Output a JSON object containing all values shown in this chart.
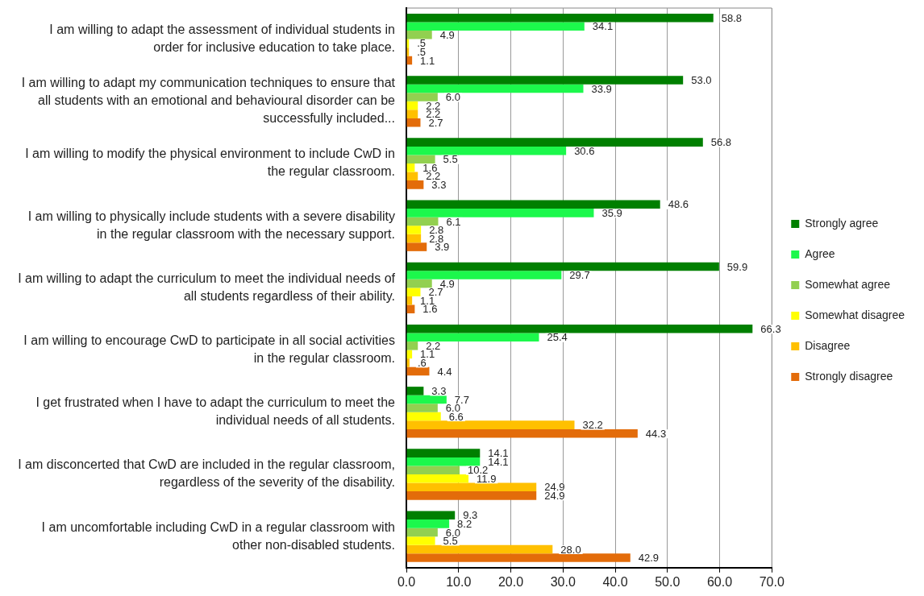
{
  "chart_data": {
    "type": "bar",
    "orientation": "horizontal",
    "categories": [
      "I am willing to adapt the assessment of individual students in order for inclusive education to take place.",
      "I am willing to adapt my communication techniques to ensure that all students with an emotional and behavioural disorder can be successfully included...",
      "I am willing to modify the physical environment to include CwD in the regular classroom.",
      "I am willing to physically include students with a severe disability in the regular classroom with the necessary support.",
      "I am willing to adapt the curriculum to meet the individual needs of all students regardless of their ability.",
      "I am willing to encourage CwD to participate in all social activities in the regular classroom.",
      "I get frustrated when I have to adapt the curriculum to meet the individual needs of all students.",
      "I am disconcerted that CwD are included in the regular classroom, regardless of the severity of the disability.",
      "I am uncomfortable including CwD in a regular classroom with other non-disabled students."
    ],
    "series": [
      {
        "name": "Strongly agree",
        "color": "#007f00",
        "values": [
          58.8,
          53.0,
          56.8,
          48.6,
          59.9,
          66.3,
          3.3,
          14.1,
          9.3
        ],
        "value_labels": [
          "58.8",
          "53.0",
          "56.8",
          "48.6",
          "59.9",
          "66.3",
          "3.3",
          "14.1",
          "9.3"
        ]
      },
      {
        "name": "Agree",
        "color": "#1cf84c",
        "values": [
          34.1,
          33.9,
          30.6,
          35.9,
          29.7,
          25.4,
          7.7,
          14.1,
          8.2
        ],
        "value_labels": [
          "34.1",
          "33.9",
          "30.6",
          "35.9",
          "29.7",
          "25.4",
          "7.7",
          "14.1",
          "8.2"
        ]
      },
      {
        "name": "Somewhat agree",
        "color": "#92d050",
        "values": [
          4.9,
          6.0,
          5.5,
          6.1,
          4.9,
          2.2,
          6.0,
          10.2,
          6.0
        ],
        "value_labels": [
          "4.9",
          "6.0",
          "5.5",
          "6.1",
          "4.9",
          "2.2",
          "6.0",
          "10.2",
          "6.0"
        ]
      },
      {
        "name": "Somewhat disagree",
        "color": "#ffff00",
        "values": [
          0.5,
          2.2,
          1.6,
          2.8,
          2.7,
          1.1,
          6.6,
          11.9,
          5.5
        ],
        "value_labels": [
          ".5",
          "2.2",
          "1.6",
          "2.8",
          "2.7",
          "1.1",
          "6.6",
          "11.9",
          "5.5"
        ]
      },
      {
        "name": "Disagree",
        "color": "#ffc000",
        "values": [
          0.5,
          2.2,
          2.2,
          2.8,
          1.1,
          0.6,
          32.2,
          24.9,
          28.0
        ],
        "value_labels": [
          ".5",
          "2.2",
          "2.2",
          "2.8",
          "1.1",
          ".6",
          "32.2",
          "24.9",
          "28.0"
        ]
      },
      {
        "name": "Strongly disagree",
        "color": "#e36c0a",
        "values": [
          1.1,
          2.7,
          3.3,
          3.9,
          1.6,
          4.4,
          44.3,
          24.9,
          42.9
        ],
        "value_labels": [
          "1.1",
          "2.7",
          "3.3",
          "3.9",
          "1.6",
          "4.4",
          "44.3",
          "24.9",
          "42.9"
        ]
      }
    ],
    "xlim": [
      0,
      70
    ],
    "xticks": [
      {
        "value": 0,
        "label": "0.0"
      },
      {
        "value": 10,
        "label": "10.0"
      },
      {
        "value": 20,
        "label": "20.0"
      },
      {
        "value": 30,
        "label": "30.0"
      },
      {
        "value": 40,
        "label": "40.0"
      },
      {
        "value": 50,
        "label": "50.0"
      },
      {
        "value": 60,
        "label": "60.0"
      },
      {
        "value": 70,
        "label": "70.0"
      }
    ],
    "grid": "x",
    "legend": "right"
  }
}
